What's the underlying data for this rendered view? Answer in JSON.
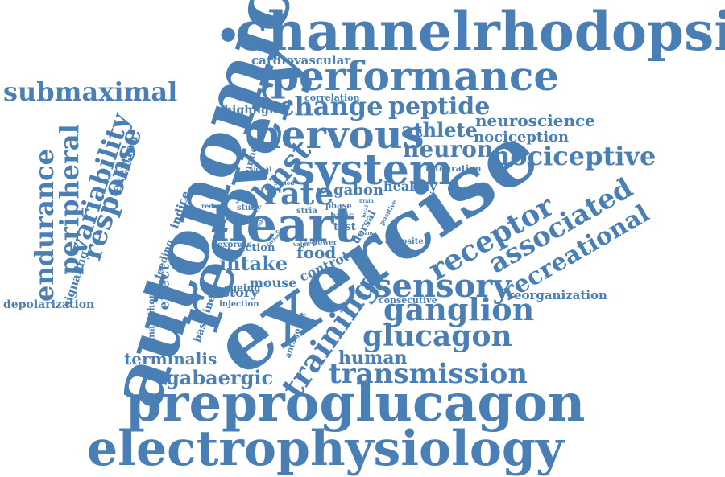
{
  "word_color": "#4a7fb5",
  "background": "#ffffff",
  "words": [
    {
      "text": "exercise",
      "weight": 100
    },
    {
      "text": "autonomic",
      "weight": 90
    },
    {
      "text": "recovery",
      "weight": 85
    },
    {
      "text": "channelrhodopsin",
      "weight": 70
    },
    {
      "text": "preproglucagon",
      "weight": 68
    },
    {
      "text": "electrophysiology",
      "weight": 65
    },
    {
      "text": "heart",
      "weight": 60
    },
    {
      "text": "performance",
      "weight": 55
    },
    {
      "text": "system",
      "weight": 50
    },
    {
      "text": "nervous",
      "weight": 45
    },
    {
      "text": "training",
      "weight": 44
    },
    {
      "text": "sensory",
      "weight": 40
    },
    {
      "text": "ganglion",
      "weight": 40
    },
    {
      "text": "glucagon",
      "weight": 38
    },
    {
      "text": "transmission",
      "weight": 36
    },
    {
      "text": "receptor",
      "weight": 36
    },
    {
      "text": "associated",
      "weight": 35
    },
    {
      "text": "recreational",
      "weight": 33
    },
    {
      "text": "response",
      "weight": 33
    },
    {
      "text": "variability",
      "weight": 32
    },
    {
      "text": "peripheral",
      "weight": 31
    },
    {
      "text": "endurance",
      "weight": 31
    },
    {
      "text": "submaximal",
      "weight": 30
    },
    {
      "text": "change",
      "weight": 30
    },
    {
      "text": "peptide",
      "weight": 29
    },
    {
      "text": "rate",
      "weight": 30
    },
    {
      "text": "bnst",
      "weight": 30
    },
    {
      "text": "nociceptive",
      "weight": 30
    },
    {
      "text": "athlete",
      "weight": 25
    },
    {
      "text": "neuron",
      "weight": 26
    },
    {
      "text": "intake",
      "weight": 25
    },
    {
      "text": "neuroscience",
      "weight": 20
    },
    {
      "text": "nociception",
      "weight": 18
    },
    {
      "text": "gabaergic",
      "weight": 22
    },
    {
      "text": "human",
      "weight": 20
    },
    {
      "text": "terminalis",
      "weight": 19
    },
    {
      "text": "cardiovascular",
      "weight": 15
    },
    {
      "text": "highlight",
      "weight": 13
    },
    {
      "text": "correlation",
      "weight": 10
    },
    {
      "text": "depolarization",
      "weight": 13
    },
    {
      "text": "reorganization",
      "weight": 14
    },
    {
      "text": "history",
      "weight": 14
    },
    {
      "text": "effect",
      "weight": 14
    },
    {
      "text": "food",
      "weight": 16
    },
    {
      "text": "control",
      "weight": 16
    },
    {
      "text": "mouse",
      "weight": 16
    },
    {
      "text": "gabon",
      "weight": 16
    },
    {
      "text": "healthy",
      "weight": 15
    },
    {
      "text": "exertion",
      "weight": 14
    },
    {
      "text": "signaling",
      "weight": 13
    },
    {
      "text": "indice",
      "weight": 12
    },
    {
      "text": "feeding",
      "weight": 11
    },
    {
      "text": "integration",
      "weight": 10
    },
    {
      "text": "consecutive",
      "weight": 10
    },
    {
      "text": "opposite",
      "weight": 9
    },
    {
      "text": "action",
      "weight": 11
    },
    {
      "text": "express",
      "weight": 9
    },
    {
      "text": "ageing",
      "weight": 11
    },
    {
      "text": "injection",
      "weight": 9
    },
    {
      "text": "baseline",
      "weight": 11
    },
    {
      "text": "marathon",
      "weight": 9
    },
    {
      "text": "antagonist",
      "weight": 9
    },
    {
      "text": "runner",
      "weight": 10
    },
    {
      "text": "test",
      "weight": 12
    },
    {
      "text": "dorsal",
      "weight": 11
    },
    {
      "text": "basic",
      "weight": 9
    },
    {
      "text": "phase",
      "weight": 9
    },
    {
      "text": "stria",
      "weight": 9
    },
    {
      "text": "study",
      "weight": 9
    },
    {
      "text": "reduce",
      "weight": 7
    },
    {
      "text": "signal",
      "weight": 7
    },
    {
      "text": "power",
      "weight": 7
    },
    {
      "text": "value",
      "weight": 6
    },
    {
      "text": "cell",
      "weight": 6
    },
    {
      "text": "period",
      "weight": 6
    },
    {
      "text": "role",
      "weight": 5
    },
    {
      "text": "after",
      "weight": 5
    },
    {
      "text": "positive",
      "weight": 6
    },
    {
      "text": "brain",
      "weight": 5
    },
    {
      "text": "many",
      "weight": 5
    },
    {
      "text": "local",
      "weight": 5
    },
    {
      "text": "factor",
      "weight": 5
    },
    {
      "text": "point",
      "weight": 4
    }
  ]
}
